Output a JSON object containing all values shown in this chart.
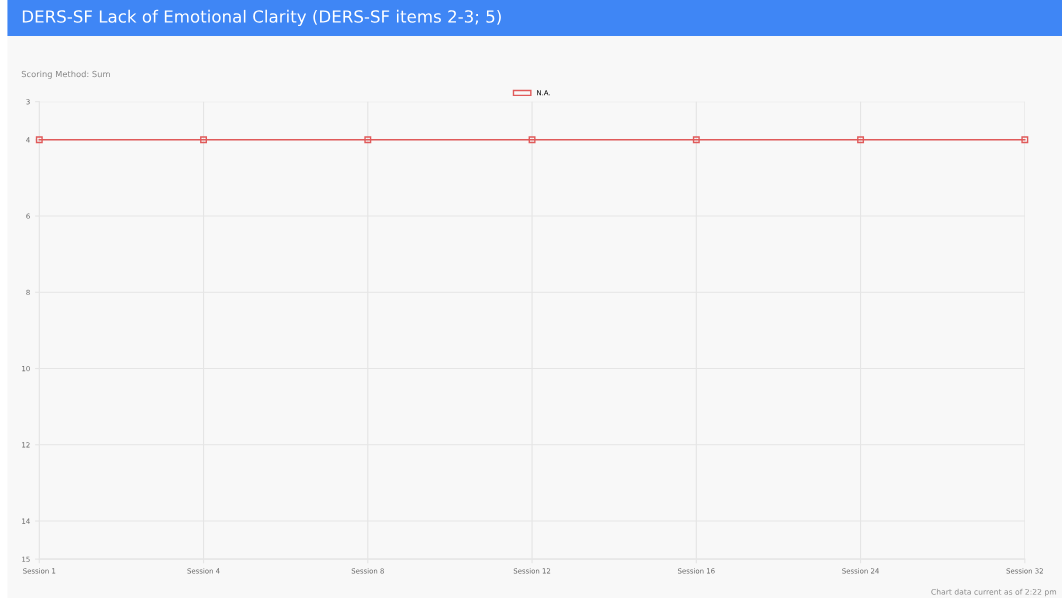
{
  "chart_data": {
    "type": "line",
    "title": "DERS-SF Lack of Emotional Clarity (DERS-SF items 2-3; 5)",
    "subtitle": "Scoring Method: Sum",
    "categories": [
      "Session 1",
      "Session 4",
      "Session 8",
      "Session 12",
      "Session 16",
      "Session 24",
      "Session 32"
    ],
    "series": [
      {
        "name": "N.A.",
        "color": "#e05a5a",
        "values": [
          4,
          4,
          4,
          4,
          4,
          4,
          4
        ]
      }
    ],
    "ylim": [
      15,
      3
    ],
    "yticks": [
      3,
      4,
      6,
      8,
      10,
      12,
      14,
      15
    ],
    "annotations": [
      "Chart data current as of 2:22 pm"
    ],
    "grid": true,
    "legend": "top",
    "marker": "square",
    "line_style": "solid"
  }
}
